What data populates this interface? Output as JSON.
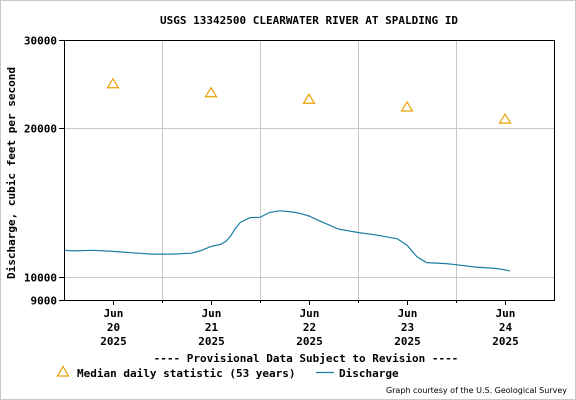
{
  "chart_data": {
    "type": "line",
    "title": "USGS 13342500 CLEARWATER RIVER AT SPALDING ID",
    "ylabel": "Discharge, cubic feet per second",
    "xlabel": "",
    "y_scale": "log",
    "ylim": [
      9000,
      30000
    ],
    "y_ticks": [
      "30000",
      "20000",
      "10000",
      "9000"
    ],
    "xlim": [
      19.5,
      24.5
    ],
    "grid": true,
    "x_ticks": [
      {
        "month": "Jun",
        "day": "20",
        "year": "2025"
      },
      {
        "month": "Jun",
        "day": "21",
        "year": "2025"
      },
      {
        "month": "Jun",
        "day": "22",
        "year": "2025"
      },
      {
        "month": "Jun",
        "day": "23",
        "year": "2025"
      },
      {
        "month": "Jun",
        "day": "24",
        "year": "2025"
      }
    ],
    "series": [
      {
        "name": "Median daily statistic (53 years)",
        "kind": "markers",
        "color": "#e8a000",
        "points": [
          {
            "x": 20.0,
            "y": 24500
          },
          {
            "x": 21.0,
            "y": 23500
          },
          {
            "x": 22.0,
            "y": 22800
          },
          {
            "x": 23.0,
            "y": 22000
          },
          {
            "x": 24.0,
            "y": 20800
          }
        ]
      },
      {
        "name": "Discharge",
        "kind": "line",
        "color": "#1a7ea3",
        "points": [
          {
            "x": 19.5,
            "y": 11330
          },
          {
            "x": 19.6,
            "y": 11300
          },
          {
            "x": 19.8,
            "y": 11330
          },
          {
            "x": 20.0,
            "y": 11270
          },
          {
            "x": 20.2,
            "y": 11200
          },
          {
            "x": 20.4,
            "y": 11130
          },
          {
            "x": 20.6,
            "y": 11130
          },
          {
            "x": 20.8,
            "y": 11180
          },
          {
            "x": 20.9,
            "y": 11320
          },
          {
            "x": 21.0,
            "y": 11530
          },
          {
            "x": 21.1,
            "y": 11650
          },
          {
            "x": 21.15,
            "y": 11800
          },
          {
            "x": 21.2,
            "y": 12100
          },
          {
            "x": 21.25,
            "y": 12550
          },
          {
            "x": 21.3,
            "y": 12900
          },
          {
            "x": 21.4,
            "y": 13180
          },
          {
            "x": 21.5,
            "y": 13200
          },
          {
            "x": 21.6,
            "y": 13500
          },
          {
            "x": 21.7,
            "y": 13600
          },
          {
            "x": 21.8,
            "y": 13550
          },
          {
            "x": 21.9,
            "y": 13450
          },
          {
            "x": 22.0,
            "y": 13280
          },
          {
            "x": 22.1,
            "y": 13000
          },
          {
            "x": 22.2,
            "y": 12750
          },
          {
            "x": 22.3,
            "y": 12500
          },
          {
            "x": 22.5,
            "y": 12300
          },
          {
            "x": 22.7,
            "y": 12150
          },
          {
            "x": 22.9,
            "y": 11950
          },
          {
            "x": 23.0,
            "y": 11600
          },
          {
            "x": 23.1,
            "y": 11000
          },
          {
            "x": 23.2,
            "y": 10700
          },
          {
            "x": 23.4,
            "y": 10650
          },
          {
            "x": 23.5,
            "y": 10600
          },
          {
            "x": 23.7,
            "y": 10480
          },
          {
            "x": 23.9,
            "y": 10420
          },
          {
            "x": 24.0,
            "y": 10350
          },
          {
            "x": 24.05,
            "y": 10300
          }
        ]
      }
    ],
    "provisional_note": "---- Provisional Data Subject to Revision ----",
    "credit": "Graph courtesy of the U.S. Geological Survey",
    "legend_position": "bottom-left"
  },
  "colors": {
    "background": "#ffffff",
    "plot_background": "#ffffff",
    "grid": "#c8c8c8",
    "frame": "#000000",
    "provisional": "#dd0000"
  }
}
